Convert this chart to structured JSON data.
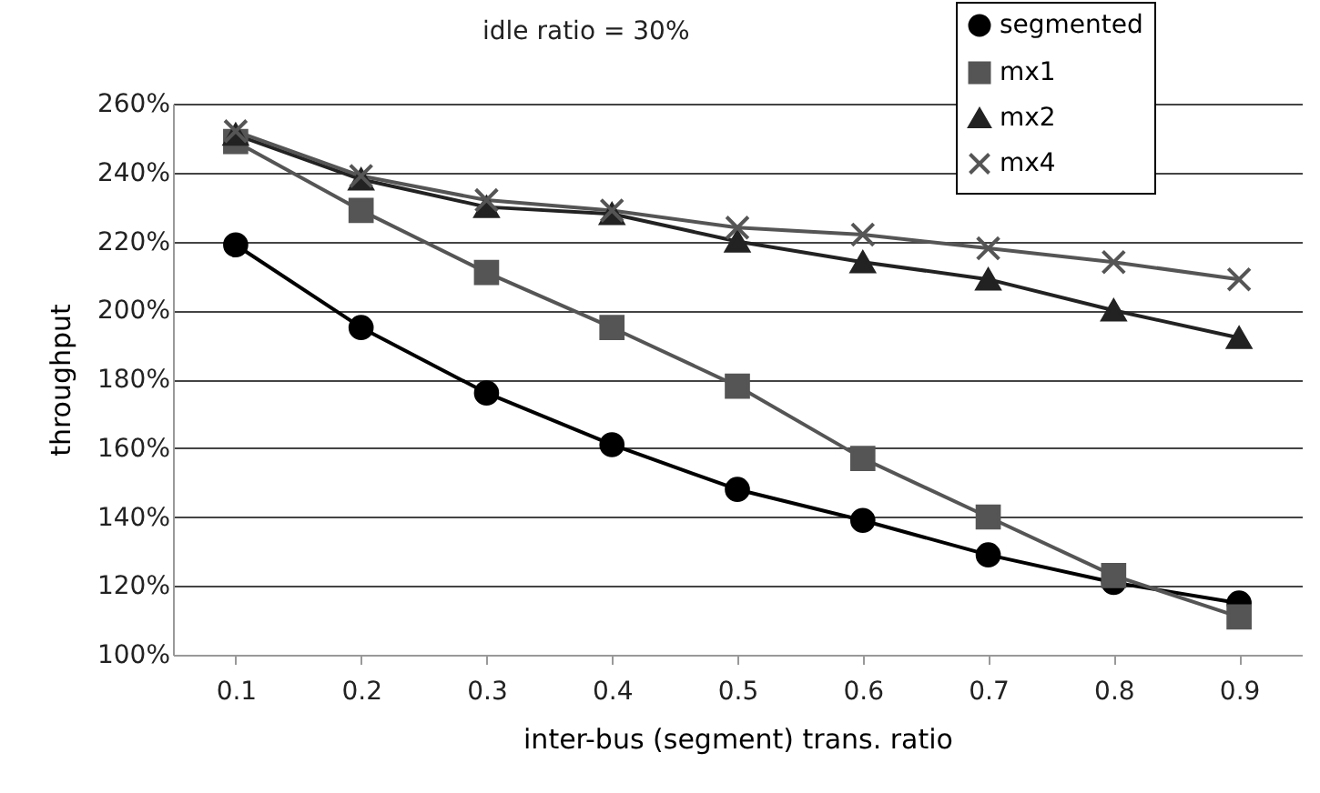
{
  "chart_data": {
    "type": "line",
    "title": "idle ratio = 30%",
    "xlabel": "inter-bus (segment) trans. ratio",
    "ylabel": "throughput",
    "categories": [
      "0.1",
      "0.2",
      "0.3",
      "0.4",
      "0.5",
      "0.6",
      "0.7",
      "0.8",
      "0.9"
    ],
    "series": [
      {
        "name": "segmented",
        "color": "#000000",
        "marker": "circle",
        "values": [
          219,
          195,
          176,
          161,
          148,
          139,
          129,
          121,
          115
        ]
      },
      {
        "name": "mx1",
        "color": "#555555",
        "marker": "square",
        "values": [
          249,
          229,
          211,
          195,
          178,
          157,
          140,
          123,
          111
        ]
      },
      {
        "name": "mx2",
        "color": "#222222",
        "marker": "triangle",
        "values": [
          251,
          238,
          230,
          228,
          220,
          214,
          209,
          200,
          192
        ]
      },
      {
        "name": "mx4",
        "color": "#555555",
        "marker": "cross",
        "values": [
          252,
          239,
          232,
          229,
          224,
          222,
          218,
          214,
          209
        ]
      }
    ],
    "ylim": [
      100,
      260
    ],
    "yticks": [
      {
        "value": 100,
        "label": "100%"
      },
      {
        "value": 120,
        "label": "120%"
      },
      {
        "value": 140,
        "label": "140%"
      },
      {
        "value": 160,
        "label": "160%"
      },
      {
        "value": 180,
        "label": "180%"
      },
      {
        "value": 200,
        "label": "200%"
      },
      {
        "value": 220,
        "label": "220%"
      },
      {
        "value": 240,
        "label": "240%"
      },
      {
        "value": 260,
        "label": "260%"
      }
    ],
    "grid": "y",
    "legend": "top right",
    "line_style": "solid"
  }
}
